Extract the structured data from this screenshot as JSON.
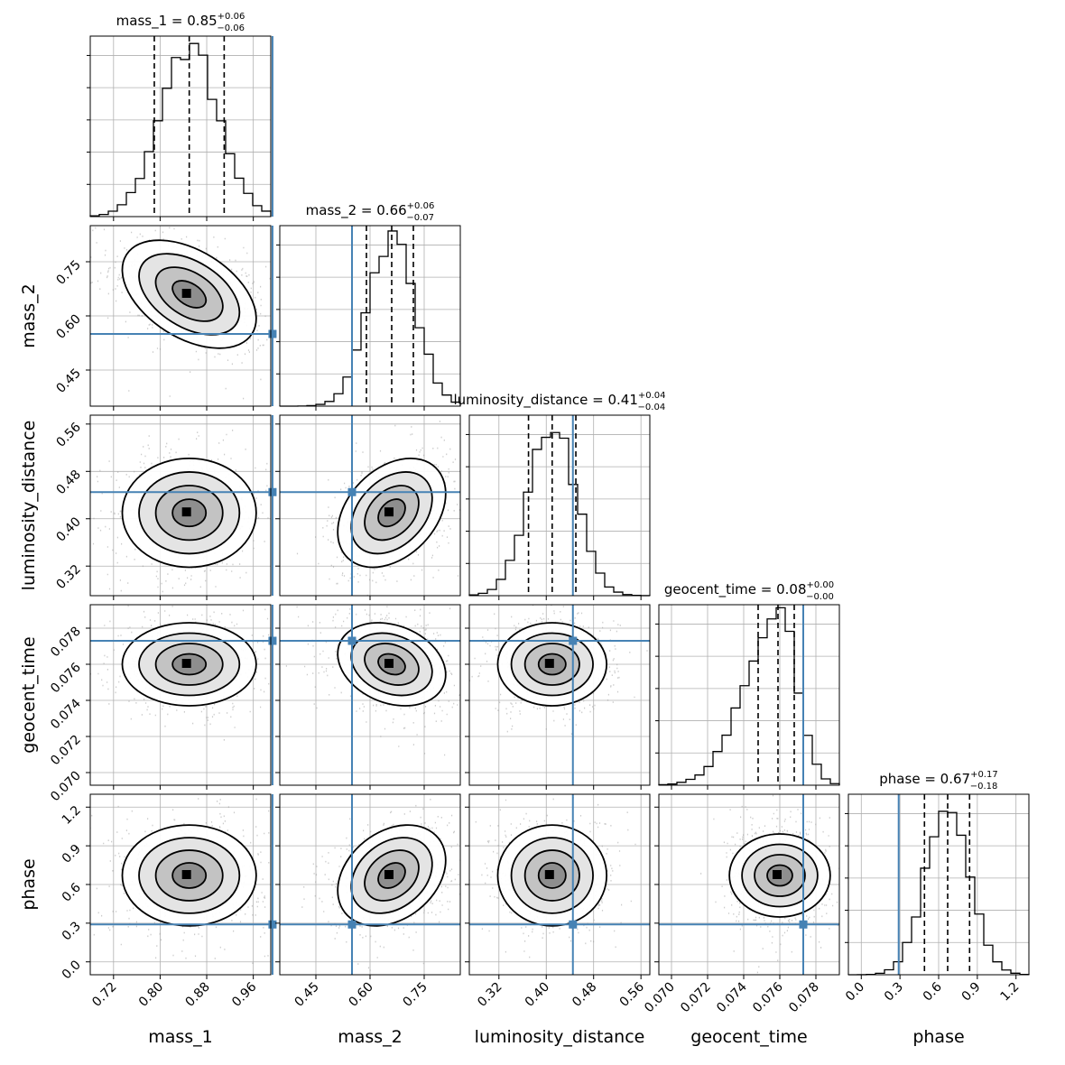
{
  "chart_data": {
    "type": "corner",
    "parameters": [
      {
        "name": "mass_1",
        "title": "mass_1 = 0.85",
        "median": 0.85,
        "plus": "+0.06",
        "minus": "−0.06",
        "quantiles": [
          0.79,
          0.85,
          0.91
        ],
        "truth": 0.993,
        "range": [
          0.68,
          0.99
        ],
        "ticks": [
          "0.72",
          "0.80",
          "0.88",
          "0.96"
        ],
        "tick_values": [
          0.72,
          0.8,
          0.88,
          0.96
        ],
        "mean": 0.85,
        "sd": 0.05,
        "hist_peak": 1.0
      },
      {
        "name": "mass_2",
        "title": "mass_2 = 0.66",
        "median": 0.66,
        "plus": "+0.06",
        "minus": "−0.07",
        "quantiles": [
          0.59,
          0.66,
          0.72
        ],
        "truth": 0.55,
        "range": [
          0.35,
          0.85
        ],
        "ticks": [
          "0.45",
          "0.60",
          "0.75"
        ],
        "tick_values": [
          0.45,
          0.6,
          0.75
        ],
        "mean": 0.66,
        "sd": 0.065,
        "hist_peak": 1.0
      },
      {
        "name": "luminosity_distance",
        "title": "luminosity_distance = 0.41",
        "median": 0.41,
        "plus": "+0.04",
        "minus": "−0.04",
        "quantiles": [
          0.37,
          0.41,
          0.45
        ],
        "truth": 0.445,
        "range": [
          0.27,
          0.575
        ],
        "ticks": [
          "0.32",
          "0.40",
          "0.48",
          "0.56"
        ],
        "tick_values": [
          0.32,
          0.4,
          0.48,
          0.56
        ],
        "mean": 0.41,
        "sd": 0.04,
        "hist_peak": 1.0
      },
      {
        "name": "geocent_time",
        "title": "geocent_time = 0.08",
        "median": 0.08,
        "plus": "+0.00",
        "minus": "−0.00",
        "quantiles": [
          0.0748,
          0.0759,
          0.0768
        ],
        "truth": 0.0773,
        "range": [
          0.0693,
          0.0793
        ],
        "ticks": [
          "0.070",
          "0.072",
          "0.074",
          "0.076",
          "0.078"
        ],
        "tick_values": [
          0.07,
          0.072,
          0.074,
          0.076,
          0.078
        ],
        "mean": 0.076,
        "sd": 0.001,
        "hist_peak": 1.0
      },
      {
        "name": "phase",
        "title": "phase = 0.67",
        "median": 0.67,
        "plus": "+0.17",
        "minus": "−0.18",
        "quantiles": [
          0.49,
          0.67,
          0.84
        ],
        "truth": 0.29,
        "range": [
          -0.1,
          1.3
        ],
        "ticks": [
          "0.0",
          "0.3",
          "0.6",
          "0.9",
          "1.2"
        ],
        "tick_values": [
          0.0,
          0.3,
          0.6,
          0.9,
          1.2
        ],
        "mean": 0.67,
        "sd": 0.17,
        "hist_peak": 1.0
      }
    ],
    "correlations": [
      [
        0,
        1,
        -0.45
      ],
      [
        0,
        2,
        0.0
      ],
      [
        1,
        2,
        0.35
      ],
      [
        0,
        3,
        0.0
      ],
      [
        1,
        3,
        -0.25
      ],
      [
        2,
        3,
        0.0
      ],
      [
        0,
        4,
        0.0
      ],
      [
        1,
        4,
        0.3
      ],
      [
        2,
        4,
        0.0
      ],
      [
        3,
        4,
        0.0
      ]
    ],
    "histogram_bins": 20,
    "contour_levels_sigma": [
      0.5,
      1.0,
      1.5,
      2.0
    ],
    "colors": {
      "truth": "#4682b4",
      "hist": "#000000",
      "contour": "#000000",
      "points": "#a0a0a0",
      "grid": "#b0b0b0"
    },
    "grid": true
  }
}
